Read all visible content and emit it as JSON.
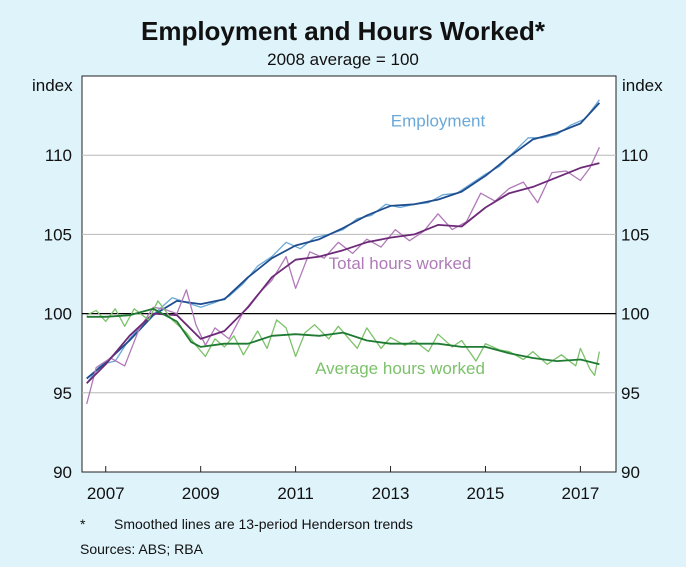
{
  "title": "Employment and Hours Worked*",
  "subtitle": "2008 average = 100",
  "footnotes": {
    "marker": "*",
    "text": "Smoothed lines are 13-period Henderson trends",
    "sources": "Sources: ABS; RBA"
  },
  "colors": {
    "employment_raw": "#6aa8d8",
    "employment_trend": "#1f4e8f",
    "hours_raw": "#b07ab8",
    "hours_trend": "#6d2a78",
    "avg_raw": "#7cc26a",
    "avg_trend": "#1f7a32",
    "background": "#dff3fb"
  },
  "chart_data": {
    "type": "line",
    "ylabel_left": "index",
    "ylabel_right": "index",
    "ylim": [
      90,
      115
    ],
    "yticks": [
      90,
      95,
      100,
      105,
      110
    ],
    "xlim": [
      2006.5,
      2017.75
    ],
    "xticks": [
      2007,
      2009,
      2011,
      2013,
      2015,
      2017
    ],
    "reference_line": 100,
    "grid": true,
    "series": [
      {
        "name": "Employment",
        "label_x": 2014.0,
        "label_y": 111.8,
        "color_key": "employment",
        "trend": [
          [
            2006.6,
            95.9
          ],
          [
            2007.0,
            96.9
          ],
          [
            2007.5,
            98.3
          ],
          [
            2008.0,
            99.9
          ],
          [
            2008.5,
            100.8
          ],
          [
            2009.0,
            100.6
          ],
          [
            2009.5,
            100.9
          ],
          [
            2010.0,
            102.3
          ],
          [
            2010.5,
            103.5
          ],
          [
            2011.0,
            104.3
          ],
          [
            2011.5,
            104.7
          ],
          [
            2012.0,
            105.4
          ],
          [
            2012.5,
            106.2
          ],
          [
            2013.0,
            106.8
          ],
          [
            2013.5,
            106.9
          ],
          [
            2014.0,
            107.2
          ],
          [
            2014.5,
            107.7
          ],
          [
            2015.0,
            108.7
          ],
          [
            2015.5,
            109.9
          ],
          [
            2016.0,
            111.0
          ],
          [
            2016.5,
            111.4
          ],
          [
            2017.0,
            112.0
          ],
          [
            2017.4,
            113.3
          ]
        ],
        "raw": [
          [
            2006.6,
            95.6
          ],
          [
            2006.9,
            96.8
          ],
          [
            2007.2,
            97.0
          ],
          [
            2007.5,
            98.4
          ],
          [
            2007.8,
            99.4
          ],
          [
            2008.1,
            100.2
          ],
          [
            2008.4,
            101.0
          ],
          [
            2008.7,
            100.7
          ],
          [
            2009.0,
            100.4
          ],
          [
            2009.3,
            100.7
          ],
          [
            2009.6,
            101.1
          ],
          [
            2009.9,
            101.9
          ],
          [
            2010.2,
            103.0
          ],
          [
            2010.5,
            103.6
          ],
          [
            2010.8,
            104.5
          ],
          [
            2011.1,
            104.1
          ],
          [
            2011.4,
            104.8
          ],
          [
            2011.7,
            105.0
          ],
          [
            2012.0,
            105.3
          ],
          [
            2012.3,
            106.0
          ],
          [
            2012.6,
            106.2
          ],
          [
            2012.9,
            106.9
          ],
          [
            2013.2,
            106.7
          ],
          [
            2013.5,
            106.9
          ],
          [
            2013.8,
            107.0
          ],
          [
            2014.1,
            107.5
          ],
          [
            2014.4,
            107.6
          ],
          [
            2014.7,
            108.2
          ],
          [
            2015.0,
            108.8
          ],
          [
            2015.3,
            109.3
          ],
          [
            2015.6,
            110.2
          ],
          [
            2015.9,
            111.1
          ],
          [
            2016.2,
            111.1
          ],
          [
            2016.5,
            111.3
          ],
          [
            2016.8,
            111.9
          ],
          [
            2017.1,
            112.3
          ],
          [
            2017.4,
            113.5
          ]
        ]
      },
      {
        "name": "Total hours worked",
        "label_x": 2013.2,
        "label_y": 102.8,
        "color_key": "hours",
        "trend": [
          [
            2006.6,
            95.6
          ],
          [
            2007.0,
            96.8
          ],
          [
            2007.5,
            98.6
          ],
          [
            2008.0,
            100.0
          ],
          [
            2008.5,
            99.9
          ],
          [
            2009.0,
            98.4
          ],
          [
            2009.5,
            98.9
          ],
          [
            2010.0,
            100.4
          ],
          [
            2010.5,
            102.3
          ],
          [
            2011.0,
            103.4
          ],
          [
            2011.5,
            103.6
          ],
          [
            2012.0,
            104.0
          ],
          [
            2012.5,
            104.5
          ],
          [
            2013.0,
            104.8
          ],
          [
            2013.5,
            105.0
          ],
          [
            2014.0,
            105.6
          ],
          [
            2014.5,
            105.5
          ],
          [
            2015.0,
            106.7
          ],
          [
            2015.5,
            107.6
          ],
          [
            2016.0,
            108.0
          ],
          [
            2016.5,
            108.6
          ],
          [
            2017.0,
            109.2
          ],
          [
            2017.4,
            109.5
          ]
        ],
        "raw": [
          [
            2006.6,
            94.3
          ],
          [
            2006.8,
            96.6
          ],
          [
            2007.1,
            97.2
          ],
          [
            2007.4,
            96.7
          ],
          [
            2007.7,
            99.0
          ],
          [
            2008.0,
            100.4
          ],
          [
            2008.2,
            100.3
          ],
          [
            2008.5,
            100.0
          ],
          [
            2008.7,
            101.5
          ],
          [
            2008.9,
            99.3
          ],
          [
            2009.1,
            98.0
          ],
          [
            2009.3,
            99.1
          ],
          [
            2009.6,
            98.4
          ],
          [
            2009.9,
            100.1
          ],
          [
            2010.2,
            101.2
          ],
          [
            2010.5,
            102.1
          ],
          [
            2010.8,
            103.6
          ],
          [
            2011.0,
            101.6
          ],
          [
            2011.3,
            103.9
          ],
          [
            2011.6,
            103.5
          ],
          [
            2011.9,
            104.5
          ],
          [
            2012.2,
            103.8
          ],
          [
            2012.5,
            104.7
          ],
          [
            2012.8,
            104.2
          ],
          [
            2013.1,
            105.3
          ],
          [
            2013.4,
            104.6
          ],
          [
            2013.7,
            105.2
          ],
          [
            2014.0,
            106.3
          ],
          [
            2014.3,
            105.3
          ],
          [
            2014.6,
            105.8
          ],
          [
            2014.9,
            107.6
          ],
          [
            2015.2,
            107.1
          ],
          [
            2015.5,
            107.9
          ],
          [
            2015.8,
            108.3
          ],
          [
            2016.1,
            107.0
          ],
          [
            2016.4,
            108.9
          ],
          [
            2016.7,
            109.0
          ],
          [
            2017.0,
            108.4
          ],
          [
            2017.2,
            109.2
          ],
          [
            2017.4,
            110.5
          ]
        ]
      },
      {
        "name": "Average hours worked",
        "label_x": 2013.2,
        "label_y": 96.2,
        "color_key": "avg",
        "trend": [
          [
            2006.6,
            99.8
          ],
          [
            2007.0,
            99.8
          ],
          [
            2007.5,
            99.9
          ],
          [
            2008.0,
            100.3
          ],
          [
            2008.5,
            99.5
          ],
          [
            2008.8,
            98.2
          ],
          [
            2009.0,
            97.9
          ],
          [
            2009.5,
            98.1
          ],
          [
            2010.0,
            98.1
          ],
          [
            2010.5,
            98.6
          ],
          [
            2011.0,
            98.7
          ],
          [
            2011.5,
            98.6
          ],
          [
            2012.0,
            98.8
          ],
          [
            2012.5,
            98.3
          ],
          [
            2013.0,
            98.1
          ],
          [
            2013.5,
            98.1
          ],
          [
            2014.0,
            98.1
          ],
          [
            2014.5,
            97.9
          ],
          [
            2015.0,
            97.9
          ],
          [
            2015.5,
            97.5
          ],
          [
            2016.0,
            97.2
          ],
          [
            2016.5,
            97.0
          ],
          [
            2017.0,
            97.1
          ],
          [
            2017.4,
            96.8
          ]
        ],
        "raw": [
          [
            2006.6,
            99.9
          ],
          [
            2006.8,
            100.2
          ],
          [
            2007.0,
            99.5
          ],
          [
            2007.2,
            100.3
          ],
          [
            2007.4,
            99.2
          ],
          [
            2007.6,
            100.3
          ],
          [
            2007.9,
            99.6
          ],
          [
            2008.1,
            100.8
          ],
          [
            2008.4,
            99.6
          ],
          [
            2008.7,
            98.8
          ],
          [
            2008.9,
            98.0
          ],
          [
            2009.1,
            97.3
          ],
          [
            2009.3,
            98.4
          ],
          [
            2009.5,
            97.9
          ],
          [
            2009.7,
            98.6
          ],
          [
            2009.9,
            97.4
          ],
          [
            2010.2,
            98.9
          ],
          [
            2010.4,
            97.8
          ],
          [
            2010.6,
            99.6
          ],
          [
            2010.8,
            99.1
          ],
          [
            2011.0,
            97.3
          ],
          [
            2011.2,
            98.8
          ],
          [
            2011.4,
            99.3
          ],
          [
            2011.7,
            98.4
          ],
          [
            2011.9,
            99.2
          ],
          [
            2012.1,
            98.5
          ],
          [
            2012.3,
            97.8
          ],
          [
            2012.5,
            99.1
          ],
          [
            2012.8,
            97.8
          ],
          [
            2013.0,
            98.5
          ],
          [
            2013.3,
            98.0
          ],
          [
            2013.5,
            98.3
          ],
          [
            2013.8,
            97.6
          ],
          [
            2014.0,
            98.7
          ],
          [
            2014.3,
            97.9
          ],
          [
            2014.5,
            98.3
          ],
          [
            2014.8,
            97.0
          ],
          [
            2015.0,
            98.1
          ],
          [
            2015.3,
            97.7
          ],
          [
            2015.5,
            97.6
          ],
          [
            2015.8,
            97.1
          ],
          [
            2016.0,
            97.6
          ],
          [
            2016.3,
            96.8
          ],
          [
            2016.6,
            97.4
          ],
          [
            2016.9,
            96.7
          ],
          [
            2017.0,
            97.8
          ],
          [
            2017.2,
            96.5
          ],
          [
            2017.3,
            96.1
          ],
          [
            2017.4,
            97.6
          ]
        ]
      }
    ]
  }
}
